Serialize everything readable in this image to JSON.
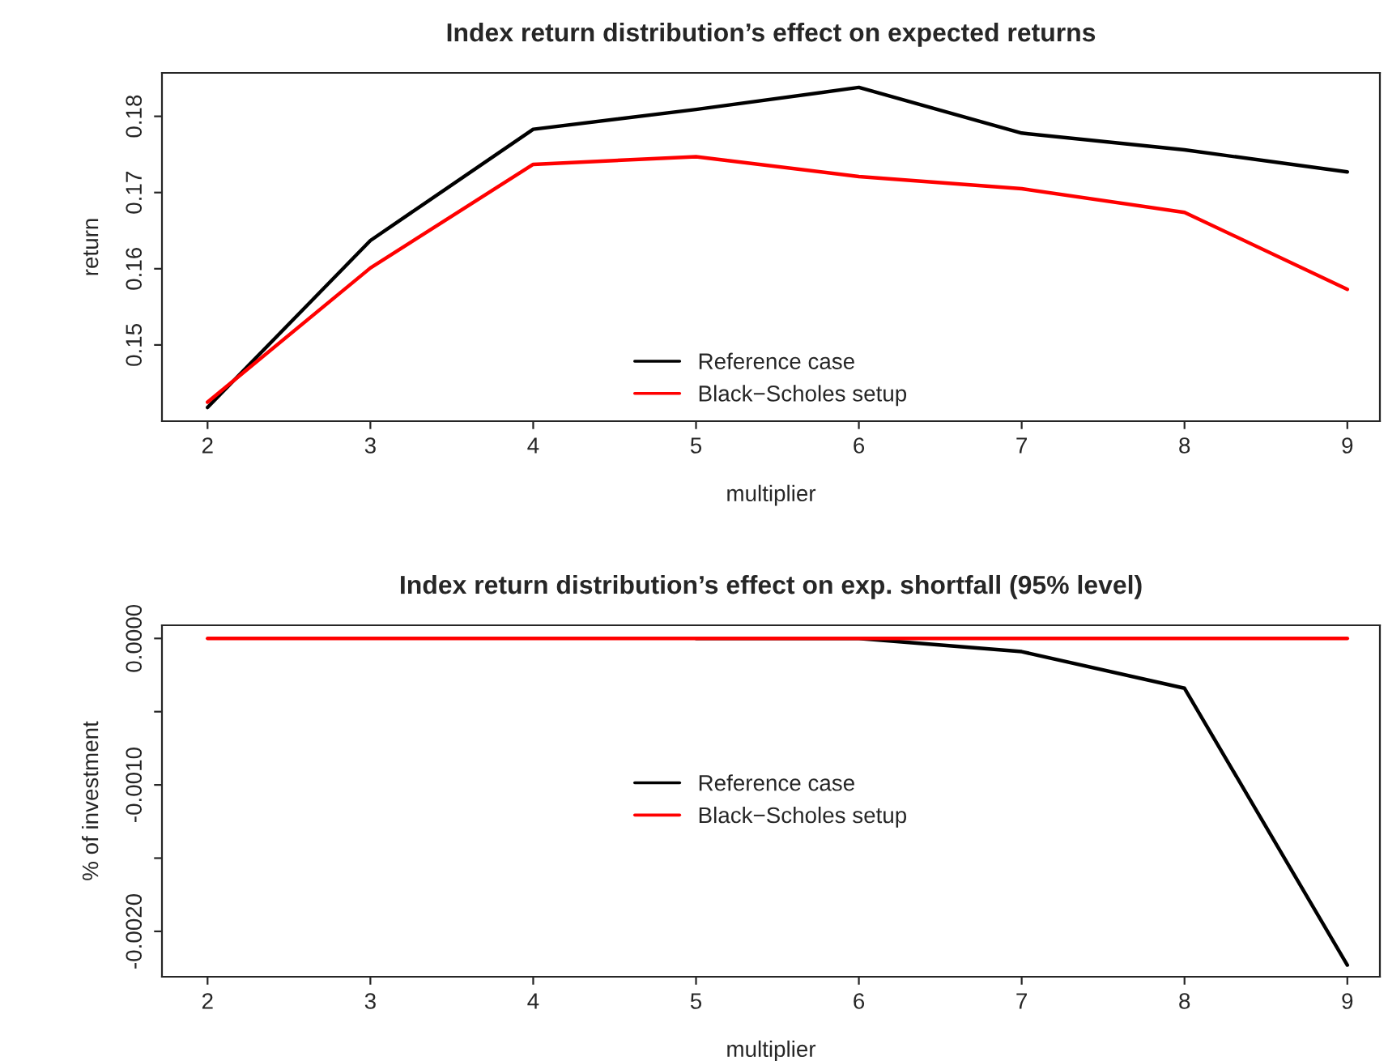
{
  "chart_data": [
    {
      "type": "line",
      "title": "Index return distribution’s effect on expected returns",
      "xlabel": "multiplier",
      "ylabel": "return",
      "x": [
        2,
        3,
        4,
        5,
        6,
        7,
        8,
        9
      ],
      "xlim": [
        1.72,
        9.2
      ],
      "xticks": [
        2,
        3,
        4,
        5,
        6,
        7,
        8,
        9
      ],
      "ylim": [
        0.14,
        0.1857
      ],
      "yticks": [
        0.15,
        0.16,
        0.17,
        0.18
      ],
      "grid": false,
      "legend": "bottom",
      "series": [
        {
          "name": "Reference case",
          "color": "#000000",
          "values": [
            0.1418,
            0.1637,
            0.1783,
            0.1809,
            0.1838,
            0.1778,
            0.1756,
            0.1727
          ]
        },
        {
          "name": "Black−Scholes setup",
          "color": "#ff0000",
          "values": [
            0.1425,
            0.1601,
            0.1737,
            0.1747,
            0.1721,
            0.1705,
            0.1674,
            0.1573
          ]
        }
      ]
    },
    {
      "type": "line",
      "title": "Index return distribution’s effect on exp. shortfall (95% level)",
      "xlabel": "multiplier",
      "ylabel": "% of investment",
      "x": [
        2,
        3,
        4,
        5,
        6,
        7,
        8,
        9
      ],
      "xlim": [
        1.72,
        9.2
      ],
      "xticks": [
        2,
        3,
        4,
        5,
        6,
        7,
        8,
        9
      ],
      "ylim": [
        -0.00231,
        9e-05
      ],
      "yticks": [
        {
          "value": 0,
          "label": "0.0000"
        },
        {
          "value": -0.0005,
          "label": null
        },
        {
          "value": -0.001,
          "label": "-0.0010"
        },
        {
          "value": -0.0015,
          "label": null
        },
        {
          "value": -0.002,
          "label": "-0.0020"
        }
      ],
      "grid": false,
      "legend": "center",
      "series": [
        {
          "name": "Reference case",
          "color": "#000000",
          "values": [
            null,
            null,
            null,
            0,
            0,
            -9e-05,
            -0.00034,
            -0.00223
          ]
        },
        {
          "name": "Black−Scholes setup",
          "color": "#ff0000",
          "values": [
            0,
            0,
            0,
            0,
            0,
            0,
            0,
            0
          ]
        }
      ]
    }
  ]
}
